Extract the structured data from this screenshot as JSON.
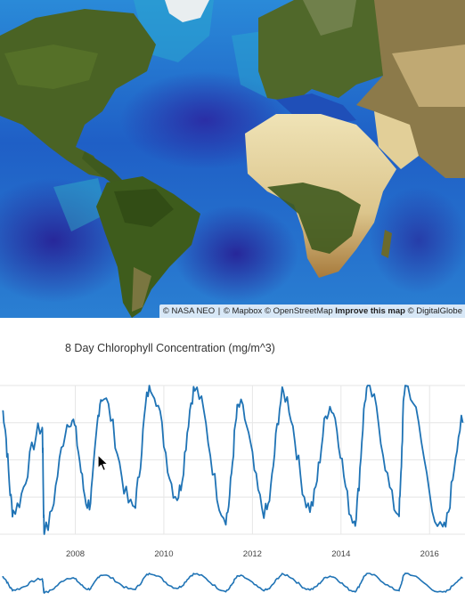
{
  "map": {
    "attribution": {
      "nasa": "© NASA NEO",
      "separator": "|",
      "mapbox": "© Mapbox",
      "osm": "© OpenStreetMap",
      "improve": "Improve this map",
      "digitalglobe": "© DigitalGlobe"
    },
    "colors": {
      "ocean_low": "#1e2fa8",
      "ocean_mid": "#1f6bd6",
      "ocean_high": "#2aa7d0",
      "land_green": "#3f5a1e",
      "desert": "#e8d8a8"
    }
  },
  "chart_data": {
    "type": "line",
    "title": "8 Day Chlorophyll Concentration (mg/m^3)",
    "xlabel": "",
    "ylabel": "",
    "xlim": [
      2006.3,
      2016.8
    ],
    "ylim": [
      0.0,
      1.0
    ],
    "grid": true,
    "x_ticks": [
      "2008",
      "2010",
      "2012",
      "2014",
      "2016"
    ],
    "x_tick_values": [
      2008,
      2010,
      2012,
      2014,
      2016
    ],
    "line_color": "#1f73b5",
    "peaks": [
      {
        "x": 2006.35,
        "y": 0.83
      },
      {
        "x": 2007.25,
        "y": 0.72
      },
      {
        "x": 2007.9,
        "y": 0.78
      },
      {
        "x": 2008.6,
        "y": 0.93
      },
      {
        "x": 2009.7,
        "y": 1.0
      },
      {
        "x": 2010.7,
        "y": 0.97
      },
      {
        "x": 2011.7,
        "y": 0.86
      },
      {
        "x": 2012.7,
        "y": 0.94
      },
      {
        "x": 2013.75,
        "y": 0.86
      },
      {
        "x": 2014.6,
        "y": 0.98
      },
      {
        "x": 2015.45,
        "y": 1.0
      },
      {
        "x": 2016.75,
        "y": 0.75
      }
    ],
    "troughs": [
      {
        "x": 2006.6,
        "y": 0.16
      },
      {
        "x": 2007.3,
        "y": 0.02
      },
      {
        "x": 2008.3,
        "y": 0.2
      },
      {
        "x": 2009.3,
        "y": 0.18
      },
      {
        "x": 2010.3,
        "y": 0.26
      },
      {
        "x": 2011.4,
        "y": 0.12
      },
      {
        "x": 2012.3,
        "y": 0.15
      },
      {
        "x": 2013.3,
        "y": 0.18
      },
      {
        "x": 2014.3,
        "y": 0.1
      },
      {
        "x": 2015.3,
        "y": 0.15
      },
      {
        "x": 2016.3,
        "y": 0.02
      }
    ]
  }
}
